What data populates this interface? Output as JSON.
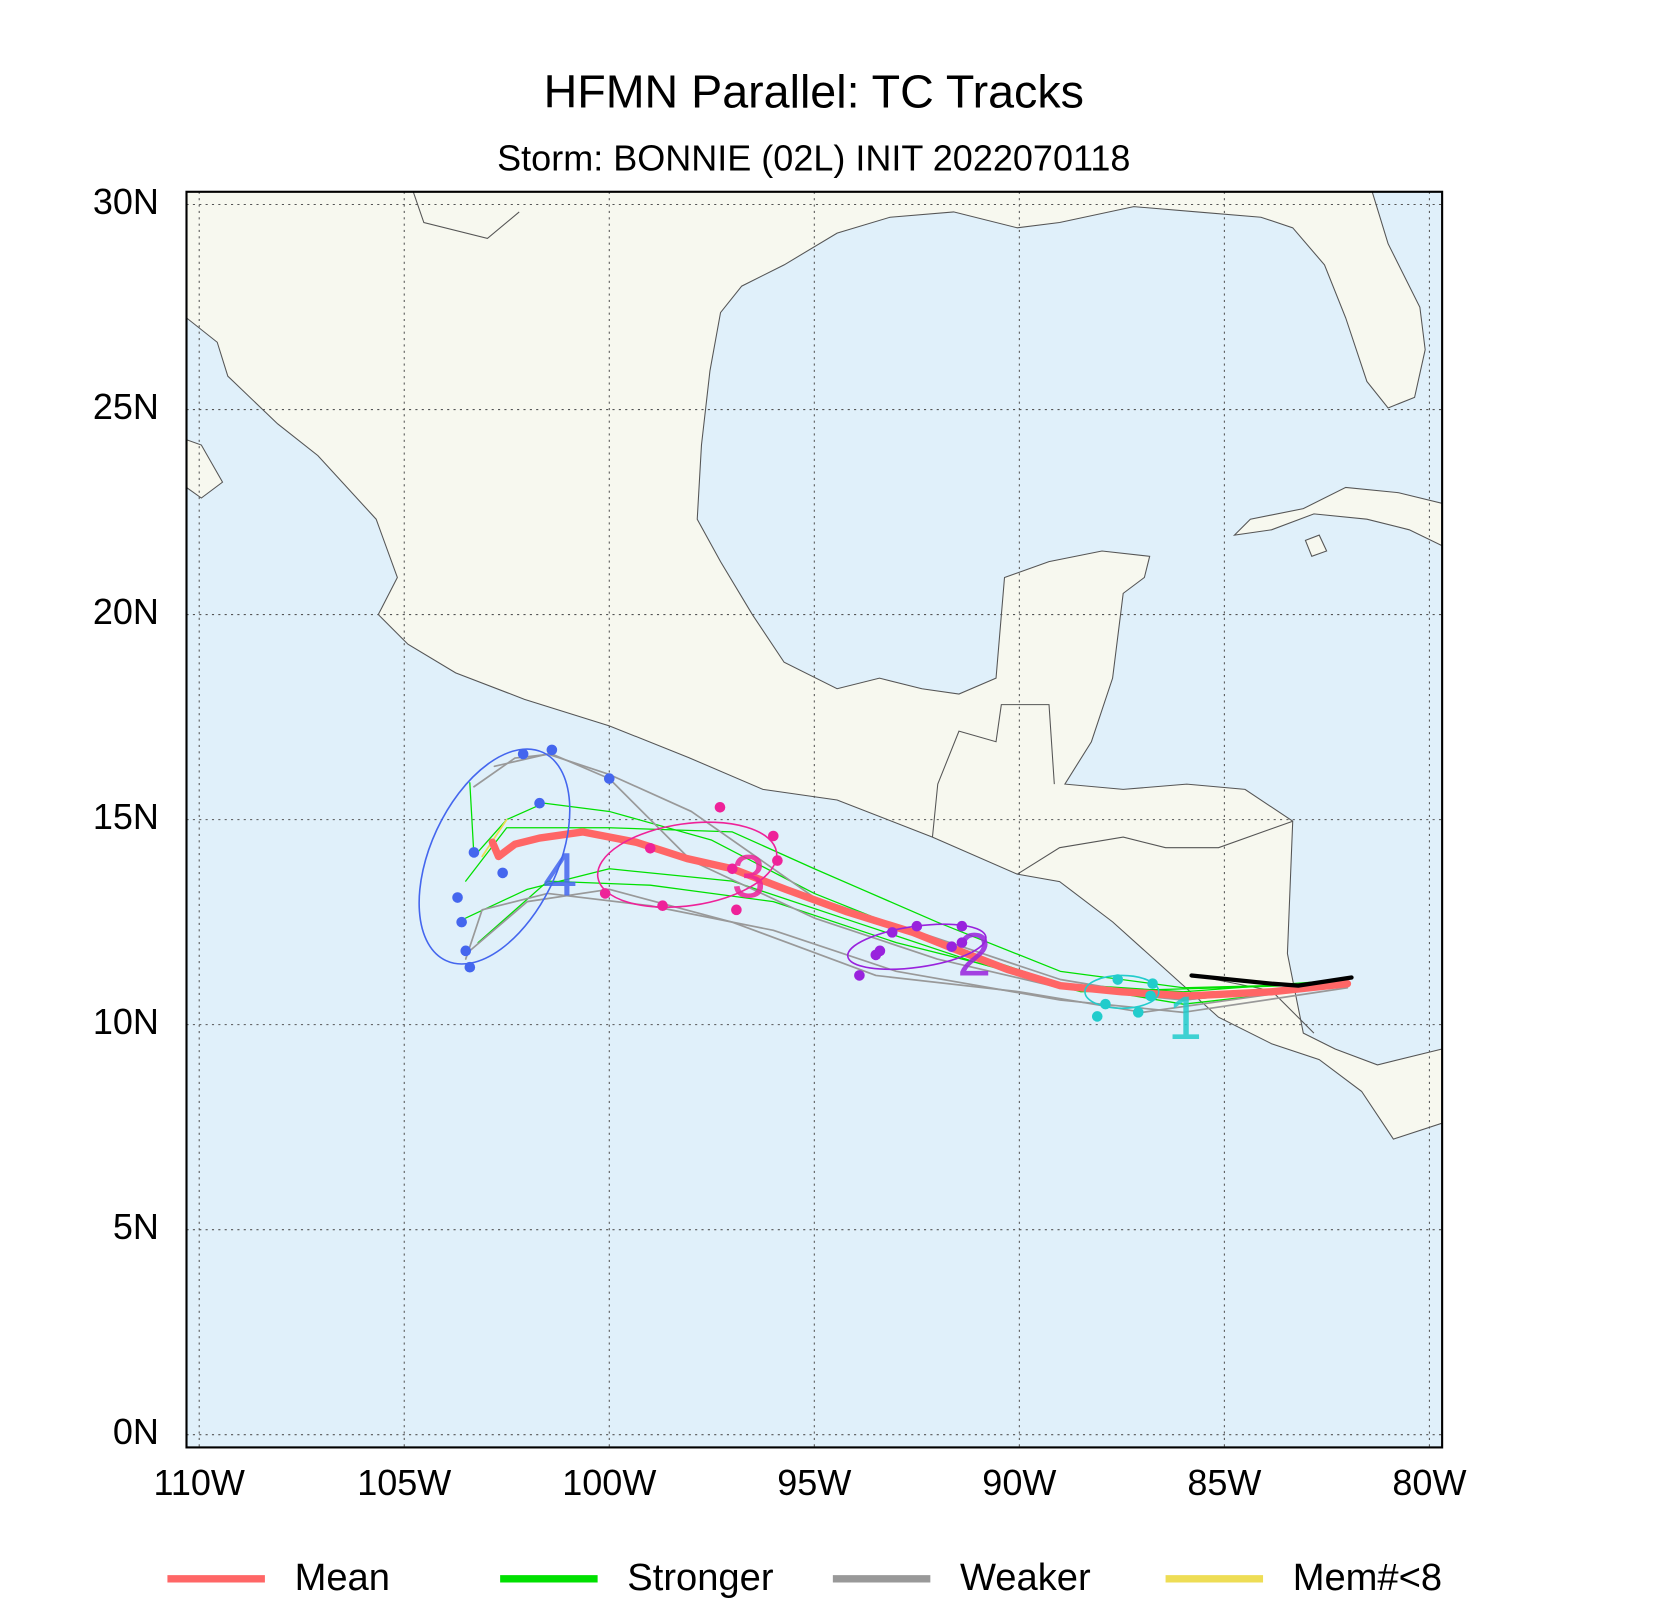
{
  "chart_data": {
    "type": "track",
    "title": "HFMN Parallel: TC Tracks",
    "subtitle": "Storm: BONNIE (02L) INIT 2022070118",
    "xlim": [
      -110.31,
      -79.69
    ],
    "ylim": [
      -0.31,
      30.31
    ],
    "xticks": [
      {
        "value": -110,
        "label": "110W"
      },
      {
        "value": -105,
        "label": "105W"
      },
      {
        "value": -100,
        "label": "100W"
      },
      {
        "value": -95,
        "label": "95W"
      },
      {
        "value": -90,
        "label": "90W"
      },
      {
        "value": -85,
        "label": "85W"
      },
      {
        "value": -80,
        "label": "80W"
      }
    ],
    "yticks": [
      {
        "value": 0,
        "label": "0N"
      },
      {
        "value": 5,
        "label": "5N"
      },
      {
        "value": 10,
        "label": "10N"
      },
      {
        "value": 15,
        "label": "15N"
      },
      {
        "value": 20,
        "label": "20N"
      },
      {
        "value": 25,
        "label": "25N"
      },
      {
        "value": 30,
        "label": "30N"
      }
    ],
    "grid": true,
    "ocean_color": "#e0f0fa",
    "legend": [
      {
        "name": "Mean",
        "color": "#ff6666"
      },
      {
        "name": "Stronger",
        "color": "#00e000"
      },
      {
        "name": "Weaker",
        "color": "#999999"
      },
      {
        "name": "Mem#<8",
        "color": "#eedd55"
      }
    ],
    "series": [
      {
        "color": "#00e000",
        "linewidth": 1.2,
        "x": [
          -82,
          -86,
          -89,
          -92,
          -95,
          -97.5,
          -100,
          -101.6,
          -102.5,
          -103.3,
          -103.4
        ],
        "y": [
          11.1,
          10.8,
          11.0,
          12.0,
          13.2,
          14.5,
          15.2,
          15.4,
          15.0,
          14.1,
          15.9
        ]
      },
      {
        "color": "#00e000",
        "linewidth": 1.2,
        "x": [
          -82,
          -86,
          -89,
          -92,
          -95,
          -97,
          -100,
          -102.5,
          -103.5
        ],
        "y": [
          11.0,
          10.9,
          11.3,
          12.5,
          13.8,
          14.7,
          14.8,
          14.8,
          13.5
        ]
      },
      {
        "color": "#00e000",
        "linewidth": 1.2,
        "x": [
          -82,
          -85,
          -88.5,
          -91,
          -94,
          -97,
          -100,
          -102,
          -103.5
        ],
        "y": [
          11.0,
          10.9,
          10.8,
          11.5,
          12.5,
          13.5,
          13.8,
          13.3,
          12.6
        ]
      },
      {
        "color": "#00e000",
        "linewidth": 1.2,
        "x": [
          -82,
          -86,
          -89,
          -93,
          -96,
          -99,
          -101.5,
          -103.2
        ],
        "y": [
          10.95,
          10.5,
          11.0,
          12.0,
          13.0,
          13.4,
          13.5,
          12.0
        ]
      },
      {
        "color": "#999999",
        "linewidth": 1.6,
        "x": [
          -82,
          -86,
          -89,
          -92,
          -95,
          -98,
          -100,
          -101.4,
          -102.3,
          -103.3
        ],
        "y": [
          11.0,
          10.6,
          10.9,
          11.6,
          12.6,
          14.0,
          16.0,
          16.6,
          16.5,
          15.8
        ]
      },
      {
        "color": "#999999",
        "linewidth": 1.6,
        "x": [
          -82,
          -86,
          -89,
          -93,
          -96,
          -99,
          -101.5,
          -103.1,
          -103.5
        ],
        "y": [
          10.9,
          10.3,
          10.6,
          11.3,
          12.3,
          12.9,
          13.2,
          12.8,
          11.6
        ]
      },
      {
        "color": "#999999",
        "linewidth": 1.6,
        "x": [
          -82,
          -87,
          -90,
          -93.5,
          -97,
          -100,
          -102,
          -103.4
        ],
        "y": [
          11.0,
          10.3,
          10.8,
          11.2,
          12.5,
          13.3,
          13.0,
          11.8
        ]
      },
      {
        "color": "#999999",
        "linewidth": 1.6,
        "x": [
          -82,
          -86,
          -89,
          -92,
          -95,
          -98,
          -100,
          -101.5,
          -102.8
        ],
        "y": [
          11.0,
          10.6,
          11.1,
          12.1,
          13.1,
          15.2,
          16.1,
          16.6,
          16.3
        ]
      },
      {
        "color": "#eedd55",
        "linewidth": 1.6,
        "x": [
          -102.5,
          -103.1
        ],
        "y": [
          15.0,
          14.1
        ]
      },
      {
        "color": "#ff6666",
        "linewidth": 7,
        "x": [
          -82.0,
          -83.85,
          -85.9,
          -87.5,
          -89.0,
          -90.3,
          -91.6,
          -92.6,
          -94.2,
          -95.7,
          -97.0,
          -98.1,
          -99.35,
          -100.65,
          -101.7,
          -102.3,
          -102.7,
          -102.85
        ],
        "y": [
          11.0,
          10.8,
          10.7,
          10.8,
          10.95,
          11.35,
          11.85,
          12.25,
          12.75,
          13.3,
          13.8,
          14.05,
          14.45,
          14.7,
          14.55,
          14.4,
          14.1,
          14.45
        ]
      },
      {
        "color": "#000000",
        "linewidth": 4,
        "x": [
          -85.8,
          -83.85,
          -83.2,
          -81.9
        ],
        "y": [
          11.2,
          11.0,
          10.95,
          11.15
        ]
      }
    ],
    "days": [
      {
        "label": "1",
        "color": "#22cccc",
        "x": [
          -88.1,
          -87.9,
          -87.6,
          -87.1,
          -86.75,
          -86.8
        ],
        "y": [
          10.2,
          10.5,
          11.1,
          10.3,
          11.0,
          10.7
        ],
        "label_x": -85.96,
        "label_y": 10.05,
        "spread": {
          "x": -87.5,
          "y": 10.8,
          "rx": 0.9,
          "ry": 0.4,
          "angle": 0
        }
      },
      {
        "label": "2",
        "color": "#9922dd",
        "x": [
          -93.9,
          -93.5,
          -93.1,
          -92.5,
          -91.4,
          -91.4,
          -91.65,
          -93.4
        ],
        "y": [
          11.2,
          11.7,
          12.25,
          12.4,
          12.4,
          12.0,
          11.9,
          11.8
        ],
        "label_x": -91.1,
        "label_y": 11.6,
        "spread": {
          "x": -92.5,
          "y": 11.9,
          "rx": 1.7,
          "ry": 0.5,
          "angle": -8
        }
      },
      {
        "label": "3",
        "color": "#ee2299",
        "x": [
          -97.3,
          -96.0,
          -95.9,
          -97.0,
          -96.9,
          -98.7,
          -100.1,
          -99.0
        ],
        "y": [
          15.3,
          14.6,
          14.0,
          13.8,
          12.8,
          12.9,
          13.2,
          14.3
        ],
        "label_x": -96.6,
        "label_y": 13.5,
        "spread": {
          "x": -98.1,
          "y": 13.9,
          "rx": 2.2,
          "ry": 1.0,
          "angle": -8
        }
      },
      {
        "label": "4",
        "color": "#4466ee",
        "x": [
          -102.1,
          -101.4,
          -100.0,
          -101.7,
          -103.3,
          -102.6,
          -103.7,
          -103.6,
          -103.5,
          -103.4
        ],
        "y": [
          16.6,
          16.7,
          16.0,
          15.4,
          14.2,
          13.7,
          13.1,
          12.5,
          11.8,
          11.4
        ],
        "label_x": -101.2,
        "label_y": 13.55,
        "spread": {
          "x": -102.8,
          "y": 14.1,
          "rx": 1.55,
          "ry": 2.8,
          "angle": 25
        }
      }
    ]
  }
}
